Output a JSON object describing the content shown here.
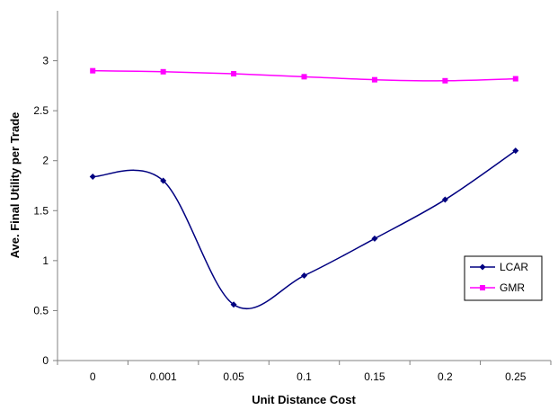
{
  "chart_data": {
    "type": "line",
    "categories": [
      "0",
      "0.001",
      "0.05",
      "0.1",
      "0.15",
      "0.2",
      "0.25"
    ],
    "series": [
      {
        "name": "LCAR",
        "values": [
          1.84,
          1.8,
          0.56,
          0.85,
          1.22,
          1.61,
          2.1
        ],
        "color": "#000080",
        "marker": "diamond",
        "smooth": true
      },
      {
        "name": "GMR",
        "values": [
          2.9,
          2.89,
          2.87,
          2.84,
          2.81,
          2.8,
          2.82
        ],
        "color": "#ff00ff",
        "marker": "square",
        "smooth": true
      }
    ],
    "xlabel": "Unit Distance Cost",
    "ylabel": "Ave. Final Utility per Trade",
    "ylim": [
      0,
      3.5
    ],
    "yticks": [
      "0",
      "0.5",
      "1",
      "1.5",
      "2",
      "2.5",
      "3"
    ],
    "grid": false,
    "legend_position": "right"
  }
}
